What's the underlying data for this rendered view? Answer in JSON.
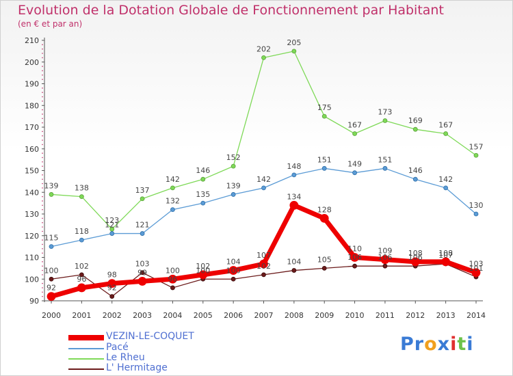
{
  "header": {
    "title": "Evolution de la Dotation Globale de Fonctionnement par Habitant",
    "subtitle": "(en € et par an)"
  },
  "logo": {
    "text": "Proxiti"
  },
  "chart_data": {
    "type": "line",
    "title": "Evolution de la Dotation Globale de Fonctionnement par Habitant",
    "subtitle": "(en € et par an)",
    "xlabel": "",
    "ylabel": "",
    "x": [
      2000,
      2001,
      2002,
      2003,
      2004,
      2005,
      2006,
      2007,
      2008,
      2009,
      2010,
      2011,
      2012,
      2013,
      2014
    ],
    "ylim": [
      90,
      210
    ],
    "yticks": [
      90,
      100,
      110,
      120,
      130,
      140,
      150,
      160,
      170,
      180,
      190,
      200,
      210
    ],
    "grid": false,
    "legend_position": "bottom-left",
    "series": [
      {
        "name": "Le Rheu",
        "color": "#7ed957",
        "values": [
          139,
          138,
          123,
          137,
          142,
          146,
          152,
          202,
          205,
          175,
          167,
          173,
          169,
          167,
          157
        ]
      },
      {
        "name": "Pacé",
        "color": "#5b9bd5",
        "values": [
          115,
          118,
          121,
          121,
          132,
          135,
          139,
          142,
          148,
          151,
          149,
          151,
          146,
          142,
          130
        ]
      },
      {
        "name": "L' Hermitage",
        "color": "#6b1a1a",
        "values": [
          100,
          102,
          92,
          103,
          96,
          100,
          100,
          102,
          104,
          105,
          106,
          106,
          106,
          107,
          101
        ]
      },
      {
        "name": "VEZIN-LE-COQUET",
        "color": "#ee0000",
        "values": [
          92,
          96,
          98,
          99,
          100,
          102,
          104,
          107,
          134,
          128,
          110,
          109,
          108,
          108,
          103
        ]
      }
    ],
    "legend_order": [
      "VEZIN-LE-COQUET",
      "Pacé",
      "Le Rheu",
      "L' Hermitage"
    ]
  }
}
